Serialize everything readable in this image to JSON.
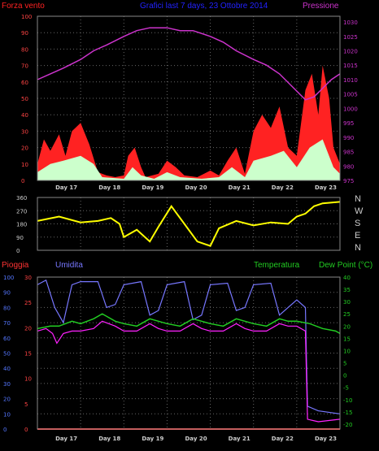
{
  "colors": {
    "wind": "#ff2222",
    "wind_inner": "#ccffcc",
    "wind_core": "#000000",
    "pressure": "#cc33cc",
    "direction": "#ffff00",
    "rain": "#ff3333",
    "humidity": "#7777ff",
    "temperature": "#22cc22",
    "dewpoint": "#ff22ff",
    "grid": "#666666",
    "axis_left": "#5577ff",
    "axis_right": "#22cc22"
  },
  "top": {
    "title_left": "Forza vento",
    "title_center": "Grafici last 7 days, 23 Ottobre 2014",
    "title_right": "Pressione"
  },
  "bottom": {
    "label_rain": "Pioggia",
    "label_humidity": "Umidita",
    "label_temp": "Temperatura",
    "label_dew": "Dew Point (°C)"
  },
  "direction_letters": [
    "N",
    "W",
    "S",
    "E",
    "N"
  ],
  "chart_data": [
    {
      "type": "area",
      "name": "wind-pressure",
      "days": [
        "Day 17",
        "Day 18",
        "Day 19",
        "Day 20",
        "Day 21",
        "Day 22",
        "Day 23"
      ],
      "y_left_ticks": [
        0,
        10,
        20,
        30,
        40,
        50,
        60,
        70,
        80,
        90,
        100
      ],
      "y_right_ticks": [
        975,
        980,
        985,
        990,
        995,
        1000,
        1005,
        1010,
        1015,
        1020,
        1025,
        1030
      ],
      "ylim_left": [
        0,
        100
      ],
      "ylim_right": [
        975,
        1032
      ],
      "pressure": [
        [
          0,
          1010
        ],
        [
          0.3,
          1012
        ],
        [
          0.6,
          1014
        ],
        [
          1.0,
          1017
        ],
        [
          1.3,
          1020
        ],
        [
          1.6,
          1022
        ],
        [
          2.0,
          1025
        ],
        [
          2.3,
          1027
        ],
        [
          2.6,
          1028
        ],
        [
          3.0,
          1028
        ],
        [
          3.3,
          1027
        ],
        [
          3.6,
          1027
        ],
        [
          4.0,
          1025
        ],
        [
          4.3,
          1023
        ],
        [
          4.6,
          1020
        ],
        [
          5.0,
          1017
        ],
        [
          5.3,
          1015
        ],
        [
          5.6,
          1012
        ],
        [
          6.0,
          1006
        ],
        [
          6.2,
          1003
        ],
        [
          6.4,
          1004
        ],
        [
          6.6,
          1007
        ],
        [
          6.8,
          1010
        ],
        [
          7.0,
          1012
        ]
      ],
      "wind_gust": [
        [
          0,
          10
        ],
        [
          0.15,
          25
        ],
        [
          0.3,
          18
        ],
        [
          0.5,
          28
        ],
        [
          0.65,
          15
        ],
        [
          0.8,
          30
        ],
        [
          1.0,
          35
        ],
        [
          1.2,
          22
        ],
        [
          1.4,
          5
        ],
        [
          1.6,
          3
        ],
        [
          1.8,
          2
        ],
        [
          2.0,
          3
        ],
        [
          2.1,
          15
        ],
        [
          2.25,
          20
        ],
        [
          2.4,
          8
        ],
        [
          2.5,
          2
        ],
        [
          2.8,
          4
        ],
        [
          3.0,
          12
        ],
        [
          3.2,
          8
        ],
        [
          3.4,
          3
        ],
        [
          3.7,
          2
        ],
        [
          4.0,
          6
        ],
        [
          4.2,
          3
        ],
        [
          4.4,
          12
        ],
        [
          4.6,
          20
        ],
        [
          4.8,
          4
        ],
        [
          5.0,
          30
        ],
        [
          5.2,
          40
        ],
        [
          5.4,
          32
        ],
        [
          5.6,
          45
        ],
        [
          5.8,
          20
        ],
        [
          6.0,
          15
        ],
        [
          6.2,
          55
        ],
        [
          6.35,
          65
        ],
        [
          6.5,
          40
        ],
        [
          6.6,
          70
        ],
        [
          6.75,
          50
        ],
        [
          6.85,
          20
        ],
        [
          7.0,
          10
        ]
      ],
      "wind_avg": [
        [
          0,
          5
        ],
        [
          0.3,
          10
        ],
        [
          0.6,
          12
        ],
        [
          1.0,
          15
        ],
        [
          1.3,
          10
        ],
        [
          1.5,
          2
        ],
        [
          2.0,
          1
        ],
        [
          2.2,
          8
        ],
        [
          2.4,
          3
        ],
        [
          2.7,
          1
        ],
        [
          3.0,
          5
        ],
        [
          3.3,
          2
        ],
        [
          3.8,
          1
        ],
        [
          4.2,
          2
        ],
        [
          4.5,
          8
        ],
        [
          4.8,
          2
        ],
        [
          5.0,
          12
        ],
        [
          5.4,
          15
        ],
        [
          5.7,
          18
        ],
        [
          6.0,
          8
        ],
        [
          6.3,
          20
        ],
        [
          6.6,
          25
        ],
        [
          6.85,
          8
        ],
        [
          7.0,
          4
        ]
      ]
    },
    {
      "type": "line",
      "name": "wind-direction",
      "y_ticks": [
        0,
        90,
        180,
        270,
        360
      ],
      "ylim": [
        0,
        360
      ],
      "direction": [
        [
          0,
          200
        ],
        [
          0.5,
          230
        ],
        [
          1.0,
          190
        ],
        [
          1.4,
          200
        ],
        [
          1.7,
          220
        ],
        [
          1.9,
          180
        ],
        [
          2.0,
          90
        ],
        [
          2.3,
          140
        ],
        [
          2.6,
          60
        ],
        [
          2.8,
          160
        ],
        [
          3.1,
          300
        ],
        [
          3.4,
          180
        ],
        [
          3.7,
          60
        ],
        [
          4.0,
          30
        ],
        [
          4.2,
          150
        ],
        [
          4.6,
          200
        ],
        [
          5.0,
          170
        ],
        [
          5.4,
          190
        ],
        [
          5.8,
          180
        ],
        [
          6.0,
          230
        ],
        [
          6.2,
          250
        ],
        [
          6.4,
          300
        ],
        [
          6.6,
          320
        ],
        [
          7.0,
          330
        ]
      ]
    },
    {
      "type": "line",
      "name": "rain-humidity-temperature",
      "y_left_ticks": [
        0,
        10,
        20,
        30,
        40,
        50,
        60,
        70,
        80,
        90,
        100
      ],
      "y_rain_ticks": [
        0,
        5,
        10,
        15,
        20,
        25,
        30
      ],
      "y_right_ticks": [
        -20,
        -15,
        -10,
        -5,
        0,
        5,
        10,
        15,
        20,
        25,
        30,
        35,
        40
      ],
      "ylim_left": [
        0,
        100
      ],
      "ylim_right": [
        -22,
        40
      ],
      "humidity": [
        [
          0,
          95
        ],
        [
          0.2,
          98
        ],
        [
          0.4,
          80
        ],
        [
          0.6,
          70
        ],
        [
          0.8,
          95
        ],
        [
          1.0,
          97
        ],
        [
          1.4,
          97
        ],
        [
          1.6,
          80
        ],
        [
          1.8,
          82
        ],
        [
          2.0,
          95
        ],
        [
          2.4,
          97
        ],
        [
          2.6,
          75
        ],
        [
          2.8,
          78
        ],
        [
          3.0,
          95
        ],
        [
          3.4,
          97
        ],
        [
          3.6,
          72
        ],
        [
          3.8,
          75
        ],
        [
          4.0,
          95
        ],
        [
          4.4,
          96
        ],
        [
          4.6,
          78
        ],
        [
          4.8,
          80
        ],
        [
          5.0,
          95
        ],
        [
          5.4,
          96
        ],
        [
          5.6,
          75
        ],
        [
          5.8,
          80
        ],
        [
          6.0,
          85
        ],
        [
          6.2,
          80
        ],
        [
          6.25,
          15
        ],
        [
          6.5,
          12
        ],
        [
          7.0,
          10
        ]
      ],
      "temperature": [
        [
          0,
          19
        ],
        [
          0.3,
          20
        ],
        [
          0.5,
          20
        ],
        [
          0.8,
          22
        ],
        [
          1.0,
          21
        ],
        [
          1.3,
          23
        ],
        [
          1.5,
          25
        ],
        [
          1.8,
          22
        ],
        [
          2.0,
          21
        ],
        [
          2.3,
          20
        ],
        [
          2.6,
          23
        ],
        [
          2.8,
          22
        ],
        [
          3.0,
          21
        ],
        [
          3.3,
          20
        ],
        [
          3.6,
          23
        ],
        [
          3.8,
          22
        ],
        [
          4.0,
          21
        ],
        [
          4.3,
          20
        ],
        [
          4.6,
          23
        ],
        [
          4.8,
          22
        ],
        [
          5.0,
          21
        ],
        [
          5.3,
          20
        ],
        [
          5.6,
          23
        ],
        [
          5.8,
          22
        ],
        [
          6.0,
          22
        ],
        [
          6.3,
          21
        ],
        [
          6.6,
          19
        ],
        [
          6.9,
          18
        ],
        [
          7.0,
          17
        ]
      ],
      "dewpoint": [
        [
          0,
          18
        ],
        [
          0.2,
          19
        ],
        [
          0.35,
          17
        ],
        [
          0.45,
          13
        ],
        [
          0.6,
          17
        ],
        [
          0.8,
          18
        ],
        [
          1.0,
          18
        ],
        [
          1.3,
          19
        ],
        [
          1.5,
          22
        ],
        [
          1.8,
          20
        ],
        [
          2.0,
          18
        ],
        [
          2.3,
          18
        ],
        [
          2.6,
          21
        ],
        [
          2.8,
          19
        ],
        [
          3.0,
          18
        ],
        [
          3.3,
          18
        ],
        [
          3.6,
          21
        ],
        [
          3.8,
          19
        ],
        [
          4.0,
          18
        ],
        [
          4.3,
          18
        ],
        [
          4.6,
          21
        ],
        [
          4.8,
          19
        ],
        [
          5.0,
          18
        ],
        [
          5.3,
          18
        ],
        [
          5.6,
          21
        ],
        [
          5.8,
          20
        ],
        [
          6.0,
          20
        ],
        [
          6.2,
          18
        ],
        [
          6.25,
          -18
        ],
        [
          6.5,
          -19
        ],
        [
          7.0,
          -18
        ]
      ],
      "rain": [
        [
          0,
          0
        ],
        [
          7.0,
          0
        ]
      ]
    }
  ]
}
